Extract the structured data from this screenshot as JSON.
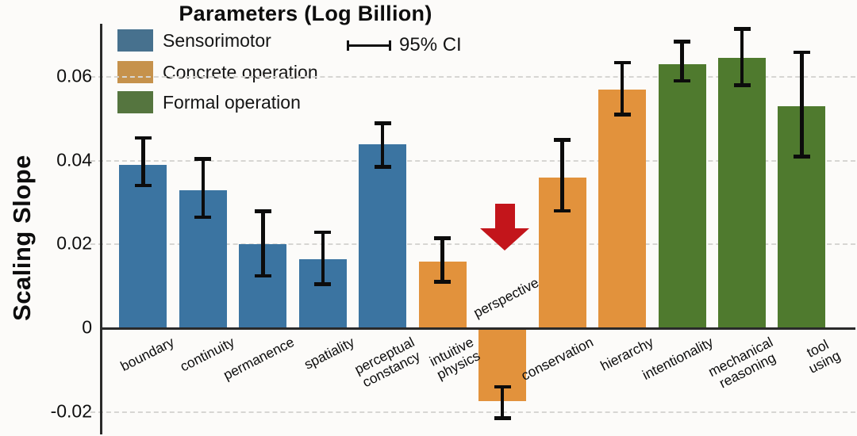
{
  "chart_data": {
    "type": "bar",
    "title": "Parameters (Log Billion)",
    "ylabel": "Scaling Slope",
    "xlabel": "",
    "ci_label": "95% CI",
    "ylim": [
      -0.025,
      0.073
    ],
    "yticks": [
      -0.02,
      0,
      0.02,
      0.04,
      0.06
    ],
    "ytick_labels": [
      "-0.02",
      "0",
      "0.02",
      "0.04",
      "0.06"
    ],
    "grid": "horizontal dashed at yticks (zero line solid)",
    "legend_position": "upper left",
    "legend": [
      {
        "label": "Sensorimotor",
        "swatch_color": "#47718e"
      },
      {
        "label": "Concrete operation",
        "swatch_color": "#c6924c"
      },
      {
        "label": "Formal operation",
        "swatch_color": "#55753f"
      }
    ],
    "group_colors": {
      "Sensorimotor": "#3b74a1",
      "Concrete operation": "#e2923c",
      "Formal operation": "#4f7a2e"
    },
    "error_bar_color": "#0c0c0c",
    "bars": [
      {
        "label": "boundary",
        "group": "Sensorimotor",
        "value": 0.039,
        "ci_low": 0.034,
        "ci_high": 0.0455
      },
      {
        "label": "continuity",
        "group": "Sensorimotor",
        "value": 0.033,
        "ci_low": 0.0265,
        "ci_high": 0.0405
      },
      {
        "label": "permanence",
        "group": "Sensorimotor",
        "value": 0.02,
        "ci_low": 0.0125,
        "ci_high": 0.028
      },
      {
        "label": "spatiality",
        "group": "Sensorimotor",
        "value": 0.0165,
        "ci_low": 0.0105,
        "ci_high": 0.023
      },
      {
        "label": "perceptual\nconstancy",
        "group": "Sensorimotor",
        "value": 0.044,
        "ci_low": 0.0385,
        "ci_high": 0.049
      },
      {
        "label": "intuitive\nphysics",
        "group": "Concrete operation",
        "value": 0.016,
        "ci_low": 0.011,
        "ci_high": 0.0215
      },
      {
        "label": "perspective",
        "group": "Concrete operation",
        "value": -0.0175,
        "ci_low": -0.0215,
        "ci_high": -0.014
      },
      {
        "label": "conservation",
        "group": "Concrete operation",
        "value": 0.036,
        "ci_low": 0.028,
        "ci_high": 0.045
      },
      {
        "label": "hierarchy",
        "group": "Concrete operation",
        "value": 0.057,
        "ci_low": 0.051,
        "ci_high": 0.0635
      },
      {
        "label": "intentionality",
        "group": "Formal operation",
        "value": 0.063,
        "ci_low": 0.059,
        "ci_high": 0.0685
      },
      {
        "label": "mechanical\nreasoning",
        "group": "Formal operation",
        "value": 0.0645,
        "ci_low": 0.058,
        "ci_high": 0.0715
      },
      {
        "label": "tool\nusing",
        "group": "Formal operation",
        "value": 0.053,
        "ci_low": 0.041,
        "ci_high": 0.066
      }
    ],
    "annotations": [
      {
        "type": "down-arrow",
        "target": "perspective",
        "color": "#c3151b"
      }
    ]
  }
}
